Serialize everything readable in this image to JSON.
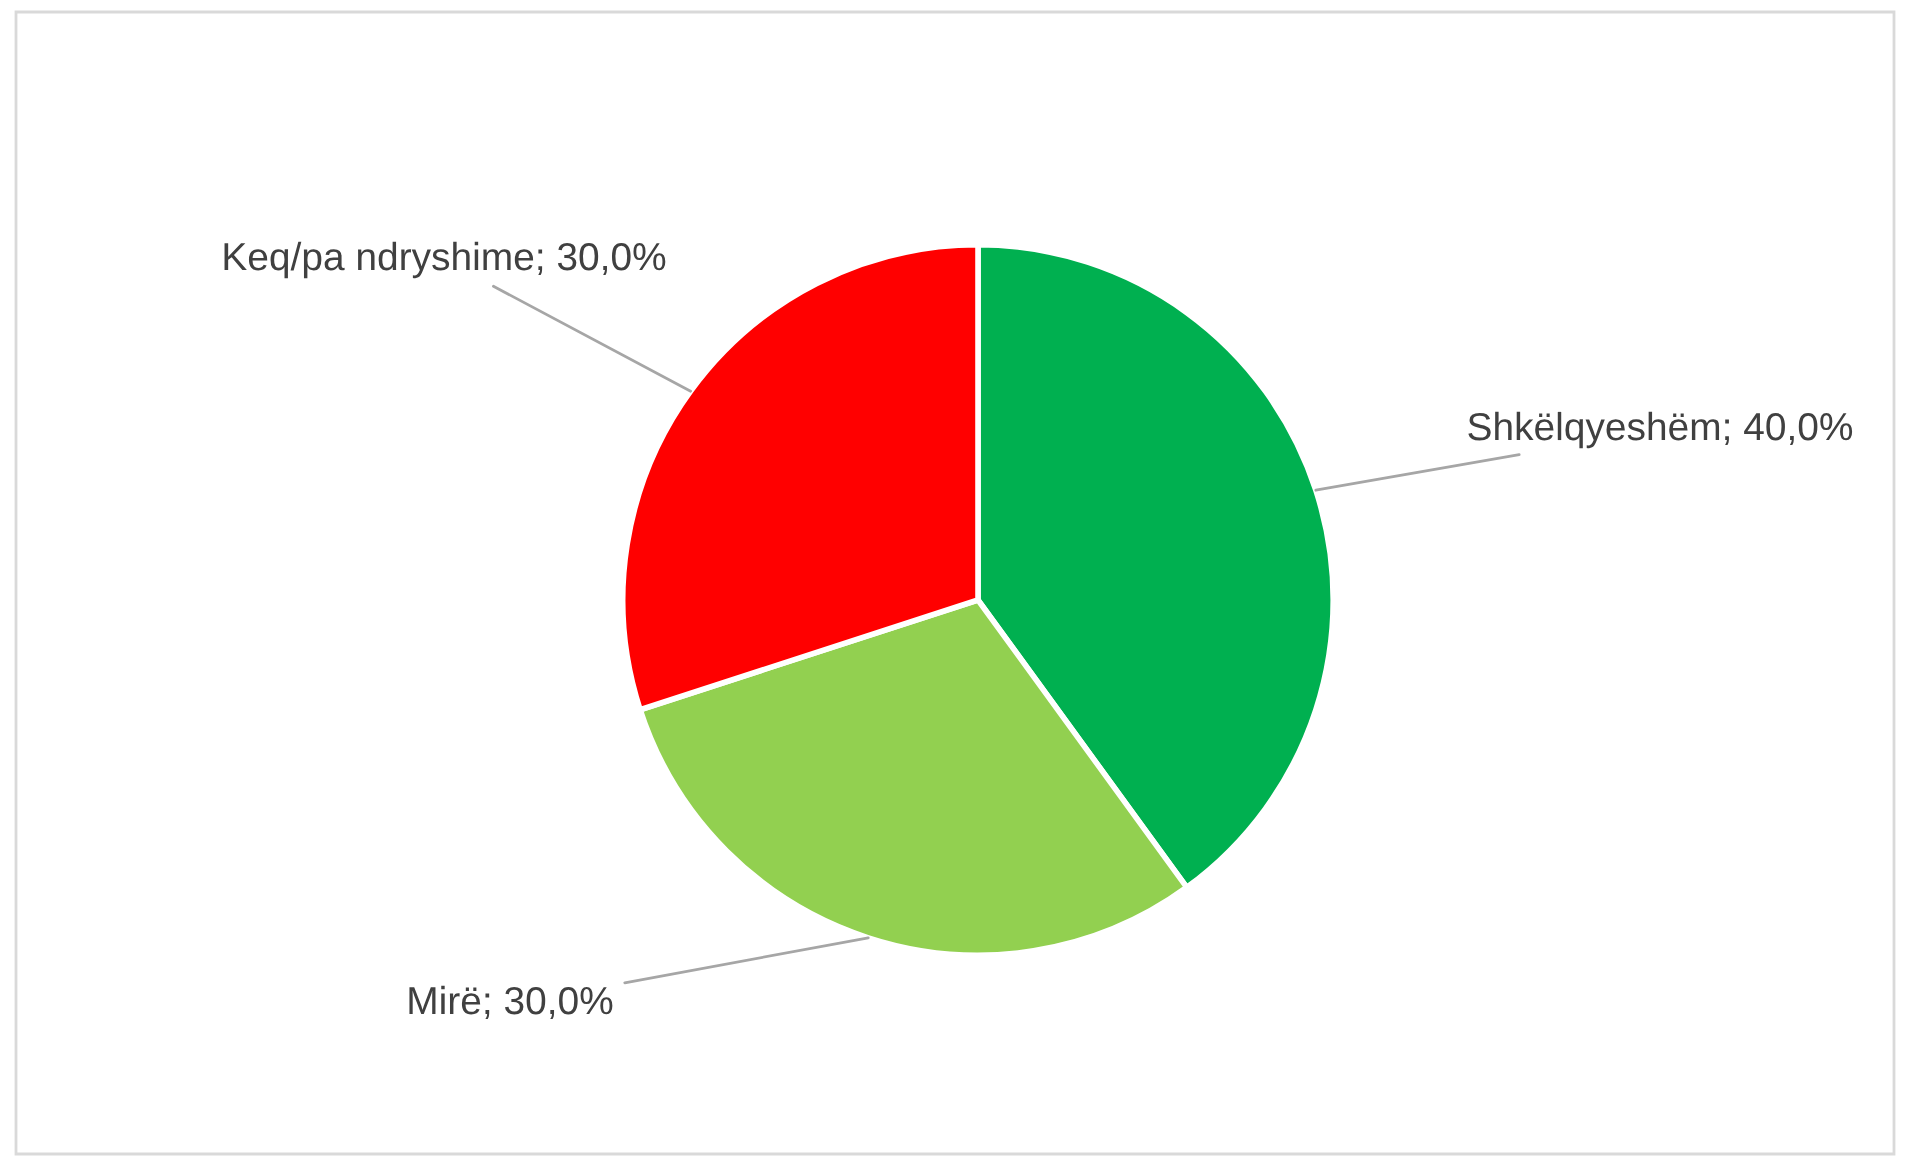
{
  "chart_data": {
    "type": "pie",
    "categories": [
      "Shkëlqyeshëm",
      "Mirë",
      "Keq/pa ndryshime"
    ],
    "values": [
      40,
      30,
      30
    ],
    "colors": [
      "#00b050",
      "#92d050",
      "#ff0000"
    ],
    "value_labels": [
      "40,0%",
      "30,0%",
      "30,0%"
    ],
    "legend": false
  }
}
